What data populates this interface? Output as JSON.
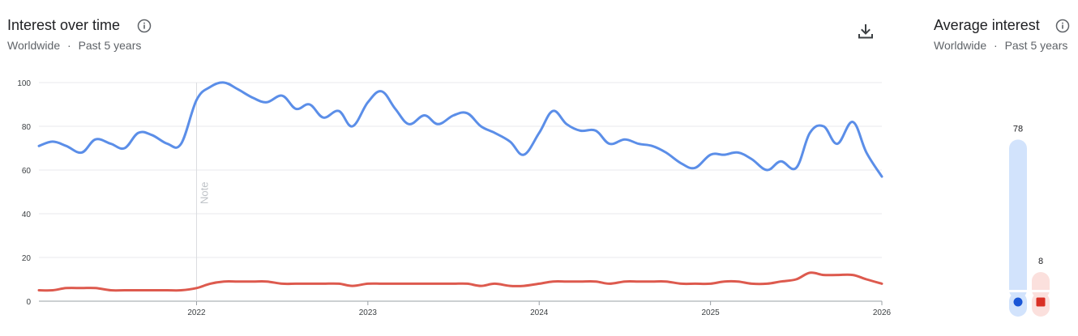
{
  "interest": {
    "title": "Interest over time",
    "location": "Worldwide",
    "separator": "·",
    "period": "Past 5 years",
    "note_label": "Note"
  },
  "average": {
    "title": "Average interest",
    "location": "Worldwide",
    "separator": "·",
    "period": "Past 5 years"
  },
  "chart_data": [
    {
      "type": "line",
      "y_ticks": [
        0,
        20,
        40,
        60,
        80,
        100
      ],
      "ylim": [
        0,
        100
      ],
      "x_ticks": [
        "2022",
        "2023",
        "2024",
        "2025",
        "2026"
      ],
      "x_tick_years": [
        2022,
        2023,
        2024,
        2025,
        2026
      ],
      "xlim": [
        2021.08,
        2026.0
      ],
      "note_x": 2022.0,
      "series": [
        {
          "color": "#5b8ee8",
          "x": [
            2021.08,
            2021.16,
            2021.24,
            2021.33,
            2021.41,
            2021.5,
            2021.58,
            2021.66,
            2021.74,
            2021.83,
            2021.91,
            2022.0,
            2022.08,
            2022.16,
            2022.24,
            2022.33,
            2022.41,
            2022.5,
            2022.58,
            2022.66,
            2022.74,
            2022.83,
            2022.91,
            2023.0,
            2023.08,
            2023.16,
            2023.24,
            2023.33,
            2023.41,
            2023.5,
            2023.58,
            2023.66,
            2023.74,
            2023.83,
            2023.91,
            2024.0,
            2024.08,
            2024.16,
            2024.24,
            2024.33,
            2024.41,
            2024.5,
            2024.58,
            2024.66,
            2024.74,
            2024.83,
            2024.91,
            2025.0,
            2025.08,
            2025.16,
            2025.24,
            2025.33,
            2025.41,
            2025.5,
            2025.58,
            2025.66,
            2025.74,
            2025.83,
            2025.91,
            2026.0
          ],
          "values": [
            71,
            73,
            71,
            68,
            74,
            72,
            70,
            77,
            76,
            72,
            72,
            92,
            98,
            100,
            97,
            93,
            91,
            94,
            88,
            90,
            84,
            87,
            80,
            91,
            96,
            88,
            81,
            85,
            81,
            85,
            86,
            80,
            77,
            73,
            67,
            77,
            87,
            81,
            78,
            78,
            72,
            74,
            72,
            71,
            68,
            63,
            61,
            67,
            67,
            68,
            65,
            60,
            64,
            61,
            77,
            80,
            72,
            82,
            68,
            57
          ]
        },
        {
          "color": "#dd5a4e",
          "x": [
            2021.08,
            2021.16,
            2021.24,
            2021.33,
            2021.41,
            2021.5,
            2021.58,
            2021.66,
            2021.74,
            2021.83,
            2021.91,
            2022.0,
            2022.08,
            2022.16,
            2022.24,
            2022.33,
            2022.41,
            2022.5,
            2022.58,
            2022.66,
            2022.74,
            2022.83,
            2022.91,
            2023.0,
            2023.08,
            2023.16,
            2023.24,
            2023.33,
            2023.41,
            2023.5,
            2023.58,
            2023.66,
            2023.74,
            2023.83,
            2023.91,
            2024.0,
            2024.08,
            2024.16,
            2024.24,
            2024.33,
            2024.41,
            2024.5,
            2024.58,
            2024.66,
            2024.74,
            2024.83,
            2024.91,
            2025.0,
            2025.08,
            2025.16,
            2025.24,
            2025.33,
            2025.41,
            2025.5,
            2025.58,
            2025.66,
            2025.74,
            2025.83,
            2025.91,
            2026.0
          ],
          "values": [
            5,
            5,
            6,
            6,
            6,
            5,
            5,
            5,
            5,
            5,
            5,
            6,
            8,
            9,
            9,
            9,
            9,
            8,
            8,
            8,
            8,
            8,
            7,
            8,
            8,
            8,
            8,
            8,
            8,
            8,
            8,
            7,
            8,
            7,
            7,
            8,
            9,
            9,
            9,
            9,
            8,
            9,
            9,
            9,
            9,
            8,
            8,
            8,
            9,
            9,
            8,
            8,
            9,
            10,
            13,
            12,
            12,
            12,
            10,
            8
          ]
        }
      ]
    },
    {
      "type": "bar",
      "values": [
        78,
        8
      ],
      "value_labels": [
        "78",
        "8"
      ],
      "ylim": [
        0,
        100
      ],
      "colors": [
        "#5b8ee8",
        "#dd5a4e"
      ],
      "track_colors": [
        "#d2e3fc",
        "#fbe0dd"
      ],
      "marker_colors": [
        "#1a56d6",
        "#d93025"
      ],
      "marker_shapes": [
        "circle",
        "square"
      ]
    }
  ]
}
